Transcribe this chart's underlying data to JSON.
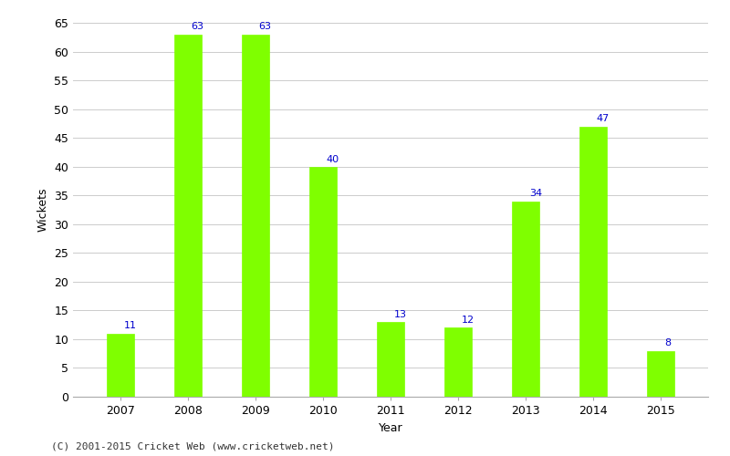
{
  "years": [
    "2007",
    "2008",
    "2009",
    "2010",
    "2011",
    "2012",
    "2013",
    "2014",
    "2015"
  ],
  "values": [
    11,
    63,
    63,
    40,
    13,
    12,
    34,
    47,
    8
  ],
  "bar_color": "#7fff00",
  "label_color": "#0000cc",
  "xlabel": "Year",
  "ylabel": "Wickets",
  "ylim": [
    0,
    65
  ],
  "yticks": [
    0,
    5,
    10,
    15,
    20,
    25,
    30,
    35,
    40,
    45,
    50,
    55,
    60,
    65
  ],
  "footnote": "(C) 2001-2015 Cricket Web (www.cricketweb.net)",
  "background_color": "#ffffff",
  "grid_color": "#cccccc",
  "label_fontsize": 8,
  "axis_label_fontsize": 9,
  "tick_fontsize": 9,
  "footnote_fontsize": 8,
  "bar_width": 0.4
}
